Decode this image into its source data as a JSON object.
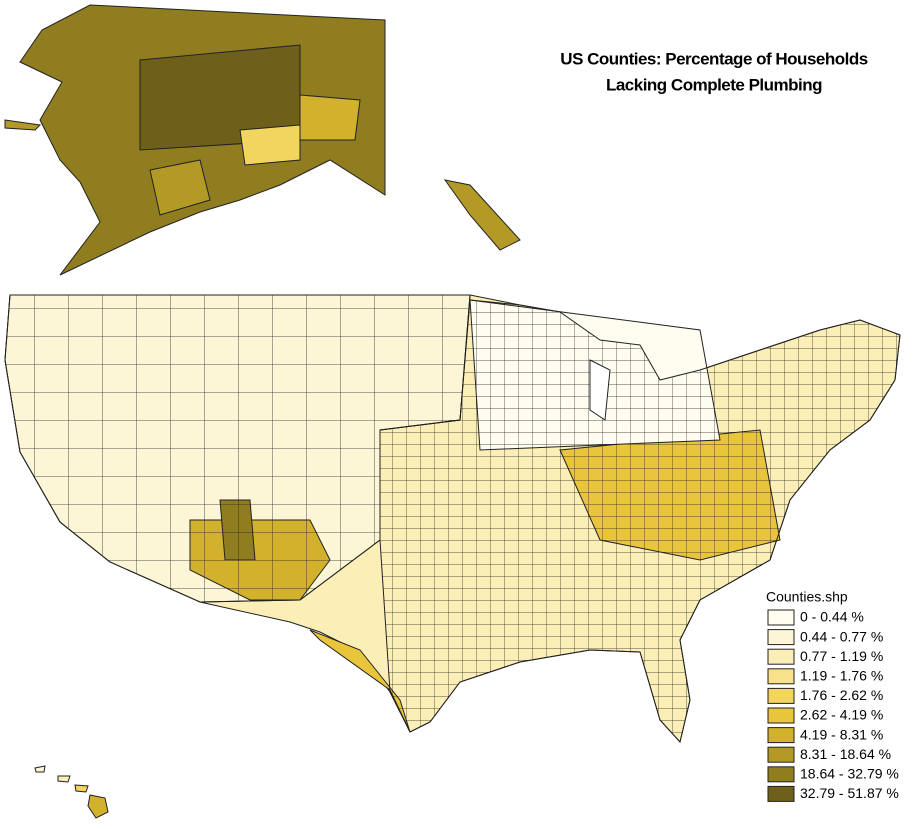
{
  "title": [
    "US Counties: Percentage of Households",
    "Lacking Complete Plumbing"
  ],
  "legend": {
    "title": "Counties.shp",
    "classes": [
      {
        "label": "0 - 0.44 %",
        "color": "#fffdf0"
      },
      {
        "label": "0.44 - 0.77 %",
        "color": "#fdf6d6"
      },
      {
        "label": "0.77 - 1.19 %",
        "color": "#fbeeb6"
      },
      {
        "label": "1.19 - 1.76 %",
        "color": "#f7e28a"
      },
      {
        "label": "1.76 - 2.62 %",
        "color": "#f2d55e"
      },
      {
        "label": "2.62 - 4.19 %",
        "color": "#e8c53a"
      },
      {
        "label": "4.19 - 8.31 %",
        "color": "#d2b12c"
      },
      {
        "label": "8.31 - 18.64 %",
        "color": "#b39a26"
      },
      {
        "label": "18.64 - 32.79 %",
        "color": "#8f7d20"
      },
      {
        "label": "32.79 - 51.87 %",
        "color": "#6e601a"
      }
    ]
  }
}
